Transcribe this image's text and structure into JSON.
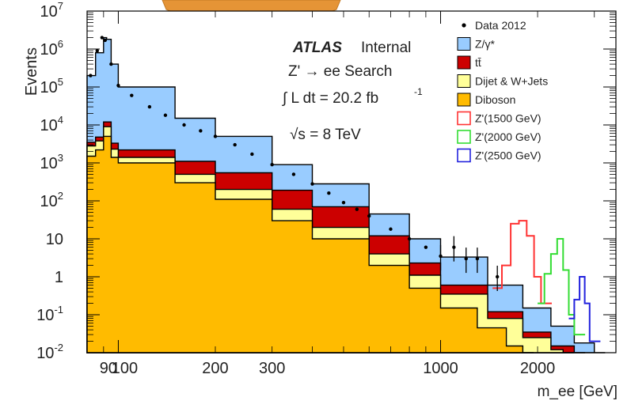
{
  "chart_data": {
    "type": "histogram",
    "xlabel": "m_ee [GeV]",
    "ylabel": "Events",
    "xscale": "log",
    "yscale": "log",
    "xlim": [
      80,
      3500
    ],
    "ylim": [
      0.01,
      10000000
    ],
    "x_tick_labels": [
      "90",
      "100",
      "200",
      "300",
      "1000",
      "2000"
    ],
    "y_tick_labels": [
      {
        "base": "10",
        "exp": "-2"
      },
      {
        "base": "10",
        "exp": "-1"
      },
      {
        "base": "1",
        "exp": ""
      },
      {
        "base": "10",
        "exp": ""
      },
      {
        "base": "10",
        "exp": "2"
      },
      {
        "base": "10",
        "exp": "3"
      },
      {
        "base": "10",
        "exp": "4"
      },
      {
        "base": "10",
        "exp": "5"
      },
      {
        "base": "10",
        "exp": "6"
      },
      {
        "base": "10",
        "exp": "7"
      }
    ],
    "legend_position": "top-right",
    "annotations": {
      "experiment": "ATLAS",
      "status": "Internal",
      "search": "Z' → ee Search",
      "lumi": "∫ L dt = 20.2 fb",
      "lumi_exp": "-1",
      "energy": "√s = 8 TeV"
    },
    "legend": [
      {
        "label": "Data 2012",
        "style": "marker",
        "color": "#000000"
      },
      {
        "label": "Z/γ*",
        "style": "fill",
        "color": "#99ccff"
      },
      {
        "label": "tt̄",
        "style": "fill",
        "color": "#cc0000"
      },
      {
        "label": "Dijet & W+Jets",
        "style": "fill",
        "color": "#ffff99"
      },
      {
        "label": "Diboson",
        "style": "fill",
        "color": "#ffbb00"
      },
      {
        "label": "Z'(1500 GeV)",
        "style": "line",
        "color": "#ff3333"
      },
      {
        "label": "Z'(2000 GeV)",
        "style": "line",
        "color": "#33dd33"
      },
      {
        "label": "Z'(2500 GeV)",
        "style": "line",
        "color": "#2222dd"
      }
    ],
    "stack_series": [
      {
        "name": "Diboson",
        "color": "#ffbb00",
        "points": [
          [
            80,
            1500
          ],
          [
            85,
            2200
          ],
          [
            90,
            5000
          ],
          [
            95,
            1400
          ],
          [
            100,
            1000
          ],
          [
            150,
            300
          ],
          [
            200,
            110
          ],
          [
            300,
            30
          ],
          [
            400,
            10
          ],
          [
            600,
            2
          ],
          [
            800,
            0.5
          ],
          [
            1000,
            0.15
          ],
          [
            1300,
            0.045
          ],
          [
            1600,
            0.015
          ],
          [
            1800,
            0.01
          ]
        ]
      },
      {
        "name": "Dijet & W+Jets",
        "color": "#ffff99",
        "points": [
          [
            80,
            2800
          ],
          [
            85,
            3800
          ],
          [
            90,
            9000
          ],
          [
            95,
            2300
          ],
          [
            100,
            1400
          ],
          [
            150,
            500
          ],
          [
            200,
            200
          ],
          [
            300,
            60
          ],
          [
            400,
            20
          ],
          [
            600,
            4
          ],
          [
            800,
            1.1
          ],
          [
            1000,
            0.35
          ],
          [
            1400,
            0.08
          ],
          [
            1800,
            0.025
          ],
          [
            2200,
            0.012
          ],
          [
            2400,
            0.01
          ]
        ]
      },
      {
        "name": "tt̄",
        "color": "#cc0000",
        "points": [
          [
            80,
            3500
          ],
          [
            85,
            4800
          ],
          [
            90,
            12000
          ],
          [
            95,
            3300
          ],
          [
            100,
            2200
          ],
          [
            150,
            1100
          ],
          [
            200,
            550
          ],
          [
            300,
            190
          ],
          [
            400,
            70
          ],
          [
            600,
            12
          ],
          [
            800,
            2.3
          ],
          [
            1000,
            0.6
          ],
          [
            1400,
            0.12
          ],
          [
            1800,
            0.035
          ],
          [
            2200,
            0.015
          ],
          [
            2600,
            0.01
          ]
        ]
      },
      {
        "name": "Z/γ*",
        "color": "#99ccff",
        "points": [
          [
            80,
            200000
          ],
          [
            85,
            800000
          ],
          [
            90,
            2000000
          ],
          [
            92,
            1800000
          ],
          [
            95,
            400000
          ],
          [
            100,
            100000
          ],
          [
            150,
            15000
          ],
          [
            200,
            5000
          ],
          [
            300,
            900
          ],
          [
            400,
            280
          ],
          [
            600,
            45
          ],
          [
            800,
            10
          ],
          [
            1000,
            3.3
          ],
          [
            1400,
            0.6
          ],
          [
            1800,
            0.15
          ],
          [
            2200,
            0.05
          ],
          [
            2600,
            0.018
          ],
          [
            3000,
            0.01
          ]
        ]
      }
    ],
    "signal_series": [
      {
        "name": "Z'(1500 GeV)",
        "color": "#ff3333",
        "points": [
          [
            1450,
            0.5
          ],
          [
            1550,
            2
          ],
          [
            1650,
            25
          ],
          [
            1750,
            30
          ],
          [
            1850,
            12
          ],
          [
            1950,
            1
          ],
          [
            2050,
            0.2
          ]
        ]
      },
      {
        "name": "Z'(2000 GeV)",
        "color": "#33dd33",
        "points": [
          [
            2000,
            0.2
          ],
          [
            2100,
            1.2
          ],
          [
            2200,
            4
          ],
          [
            2300,
            10
          ],
          [
            2400,
            1.5
          ],
          [
            2500,
            0.1
          ],
          [
            2600,
            0.03
          ]
        ]
      },
      {
        "name": "Z'(2500 GeV)",
        "color": "#2222dd",
        "points": [
          [
            2500,
            0.08
          ],
          [
            2600,
            0.25
          ],
          [
            2700,
            1
          ],
          [
            2800,
            0.2
          ],
          [
            2900,
            0.02
          ]
        ]
      }
    ],
    "data_points": [
      [
        82,
        200000
      ],
      [
        86,
        900000
      ],
      [
        89,
        2000000
      ],
      [
        91,
        1700000
      ],
      [
        95,
        400000
      ],
      [
        100,
        110000
      ],
      [
        110,
        60000
      ],
      [
        125,
        30000
      ],
      [
        140,
        18000
      ],
      [
        160,
        10000
      ],
      [
        180,
        7000
      ],
      [
        200,
        5000
      ],
      [
        230,
        3000
      ],
      [
        260,
        1700
      ],
      [
        300,
        900
      ],
      [
        350,
        500
      ],
      [
        400,
        280
      ],
      [
        450,
        160
      ],
      [
        500,
        90
      ],
      [
        550,
        60
      ],
      [
        600,
        40
      ],
      [
        700,
        18
      ],
      [
        800,
        10
      ],
      [
        900,
        6
      ],
      [
        1000,
        3.5
      ],
      [
        1100,
        6
      ],
      [
        1200,
        3
      ],
      [
        1300,
        3
      ],
      [
        1500,
        1
      ]
    ]
  }
}
